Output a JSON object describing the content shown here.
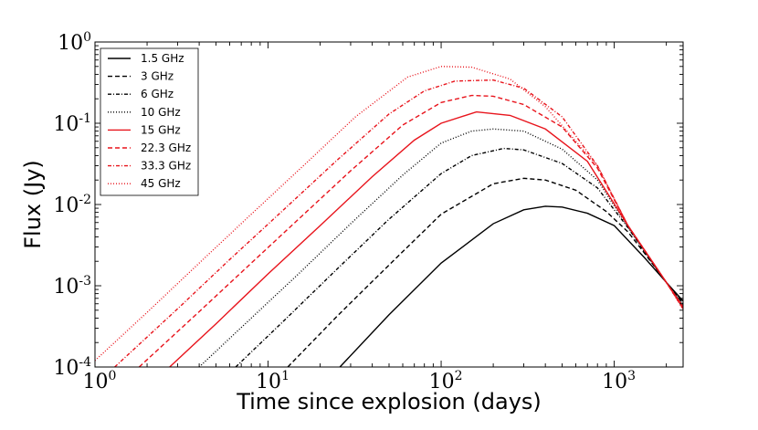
{
  "chart_data": {
    "type": "line",
    "title": "",
    "xlabel": "Time since explosion (days)",
    "ylabel": "Flux (Jy)",
    "xscale": "log",
    "yscale": "log",
    "xlim": [
      1,
      2500
    ],
    "ylim": [
      0.0001,
      1
    ],
    "grid": false,
    "legend_position": "top-left",
    "x_ticks": [
      {
        "base": "10",
        "exp": "0",
        "value": 1
      },
      {
        "base": "10",
        "exp": "1",
        "value": 10
      },
      {
        "base": "10",
        "exp": "2",
        "value": 100
      },
      {
        "base": "10",
        "exp": "3",
        "value": 1000
      }
    ],
    "y_ticks": [
      {
        "base": "10",
        "exp": "0",
        "value": 1
      },
      {
        "base": "10",
        "exp": "-1",
        "value": 0.1
      },
      {
        "base": "10",
        "exp": "-2",
        "value": 0.01
      },
      {
        "base": "10",
        "exp": "-3",
        "value": 0.001
      },
      {
        "base": "10",
        "exp": "-4",
        "value": 0.0001
      }
    ],
    "series": [
      {
        "name": "1.5 GHz",
        "color": "#000000",
        "style": "solid",
        "x": [
          26,
          50,
          100,
          200,
          300,
          400,
          500,
          700,
          1000,
          1500,
          2000,
          2500
        ],
        "y": [
          0.0001,
          0.00044,
          0.0019,
          0.0058,
          0.0086,
          0.0095,
          0.0093,
          0.0078,
          0.0055,
          0.0022,
          0.0011,
          0.00065
        ]
      },
      {
        "name": "3 GHz",
        "color": "#000000",
        "style": "dashed",
        "x": [
          13,
          25,
          50,
          100,
          200,
          300,
          400,
          600,
          900,
          1200,
          1500,
          2000,
          2500
        ],
        "y": [
          0.0001,
          0.00042,
          0.0018,
          0.0076,
          0.018,
          0.021,
          0.02,
          0.015,
          0.0082,
          0.0046,
          0.0025,
          0.0011,
          0.00062
        ]
      },
      {
        "name": "6 GHz",
        "color": "#000000",
        "style": "dashdot",
        "x": [
          6.5,
          12,
          25,
          50,
          100,
          150,
          230,
          300,
          500,
          800,
          1200,
          1500,
          2000,
          2500
        ],
        "y": [
          0.0001,
          0.00035,
          0.0016,
          0.0066,
          0.024,
          0.04,
          0.049,
          0.047,
          0.032,
          0.016,
          0.0052,
          0.0026,
          0.0011,
          0.0006
        ]
      },
      {
        "name": "10 GHz",
        "color": "#000000",
        "style": "dotted",
        "x": [
          4,
          8,
          15,
          30,
          60,
          100,
          150,
          200,
          300,
          500,
          800,
          1200,
          2000,
          2500
        ],
        "y": [
          0.0001,
          0.0004,
          0.0014,
          0.0058,
          0.023,
          0.057,
          0.08,
          0.085,
          0.08,
          0.048,
          0.02,
          0.0053,
          0.0011,
          0.00058
        ]
      },
      {
        "name": "15 GHz",
        "color": "#e8141c",
        "style": "solid",
        "x": [
          2.7,
          5,
          10,
          20,
          40,
          70,
          100,
          160,
          250,
          400,
          700,
          1200,
          2000,
          2500
        ],
        "y": [
          0.0001,
          0.00034,
          0.0014,
          0.0055,
          0.022,
          0.062,
          0.1,
          0.138,
          0.125,
          0.085,
          0.034,
          0.0055,
          0.0011,
          0.00055
        ]
      },
      {
        "name": "22.3 GHz",
        "color": "#e8141c",
        "style": "dashed",
        "x": [
          1.8,
          4,
          8,
          15,
          30,
          60,
          100,
          150,
          200,
          300,
          500,
          800,
          1200,
          2000,
          2500
        ],
        "y": [
          0.0001,
          0.00048,
          0.0019,
          0.0066,
          0.026,
          0.095,
          0.18,
          0.22,
          0.215,
          0.17,
          0.09,
          0.028,
          0.0055,
          0.0011,
          0.00053
        ]
      },
      {
        "name": "33.3 GHz",
        "color": "#e8141c",
        "style": "dashdot",
        "x": [
          1.3,
          3,
          6,
          12,
          25,
          50,
          80,
          120,
          200,
          300,
          500,
          800,
          1200,
          2000,
          2500
        ],
        "y": [
          0.0001,
          0.00052,
          0.0021,
          0.0082,
          0.035,
          0.13,
          0.25,
          0.33,
          0.34,
          0.27,
          0.12,
          0.03,
          0.0055,
          0.0011,
          0.00052
        ]
      },
      {
        "name": "45 GHz",
        "color": "#e8141c",
        "style": "dotted",
        "x": [
          1,
          2,
          4,
          8,
          16,
          32,
          64,
          100,
          150,
          250,
          400,
          600,
          800,
          1200,
          2000,
          2500
        ],
        "y": [
          0.00012,
          0.00047,
          0.0019,
          0.0076,
          0.03,
          0.12,
          0.37,
          0.5,
          0.49,
          0.35,
          0.16,
          0.06,
          0.03,
          0.0055,
          0.0011,
          0.00051
        ]
      }
    ]
  }
}
